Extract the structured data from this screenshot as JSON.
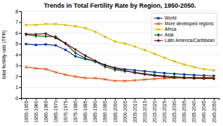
{
  "chart_data": {
    "type": "line",
    "title": "Trends in Total Fertility Rate by Region, 1950-2050.",
    "y_label": "total fertility rate (TFR)",
    "categories": [
      "1950-1955",
      "1955-1960",
      "1960-1965",
      "1965-1970",
      "1970-1975",
      "1975-1980",
      "1980-1985",
      "1985-1990",
      "1990-1995",
      "1995-2000",
      "2000-2005",
      "2005-2010",
      "2010-2015",
      "2015-2020",
      "2020-2025",
      "2025-2030",
      "2030-2035",
      "2035-2040",
      "2040-2045",
      "2045-2050"
    ],
    "series": [
      {
        "name": "World",
        "color": "#003399",
        "marker": "square",
        "values": [
          4.97,
          4.89,
          4.94,
          4.85,
          4.44,
          3.84,
          3.59,
          3.38,
          3.04,
          2.79,
          2.65,
          2.56,
          2.47,
          2.38,
          2.3,
          2.23,
          2.17,
          2.12,
          2.08,
          2.05
        ]
      },
      {
        "name": "More developed regions",
        "color": "#dd4400",
        "marker": "x",
        "values": [
          2.84,
          2.73,
          2.67,
          2.37,
          2.15,
          1.97,
          1.85,
          1.83,
          1.72,
          1.58,
          1.57,
          1.63,
          1.7,
          1.76,
          1.81,
          1.85,
          1.88,
          1.89,
          1.9,
          1.91
        ]
      },
      {
        "name": "Africa",
        "color": "#ddbb00",
        "marker": "triangle-down",
        "values": [
          6.73,
          6.74,
          6.82,
          6.82,
          6.72,
          6.62,
          6.44,
          6.11,
          5.63,
          5.21,
          5.02,
          4.74,
          4.42,
          4.07,
          3.71,
          3.38,
          3.09,
          2.85,
          2.66,
          2.54
        ]
      },
      {
        "name": "Asia",
        "color": "#006600",
        "marker": "diamond",
        "values": [
          5.85,
          5.73,
          5.69,
          5.65,
          5.02,
          4.15,
          3.66,
          3.35,
          2.89,
          2.6,
          2.47,
          2.37,
          2.23,
          2.12,
          2.03,
          1.96,
          1.9,
          1.86,
          1.83,
          1.81
        ]
      },
      {
        "name": "Latin America/Caribbean",
        "color": "#660022",
        "marker": "circle",
        "values": [
          5.9,
          5.87,
          5.94,
          5.53,
          5.04,
          4.47,
          3.91,
          3.43,
          3.02,
          2.73,
          2.55,
          2.32,
          2.18,
          2.06,
          1.96,
          1.89,
          1.84,
          1.81,
          1.79,
          1.78
        ]
      }
    ],
    "ylim": [
      0,
      8
    ],
    "yticks": [
      0,
      1,
      2,
      3,
      4,
      5,
      6,
      7,
      8
    ],
    "grid": true,
    "legend": "upper right"
  }
}
